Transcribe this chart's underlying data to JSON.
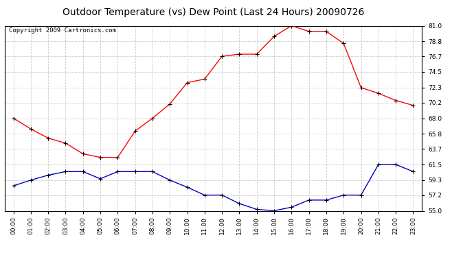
{
  "title": "Outdoor Temperature (vs) Dew Point (Last 24 Hours) 20090726",
  "copyright": "Copyright 2009 Cartronics.com",
  "hours": [
    "00:00",
    "01:00",
    "02:00",
    "03:00",
    "04:00",
    "05:00",
    "06:00",
    "07:00",
    "08:00",
    "09:00",
    "10:00",
    "11:00",
    "12:00",
    "13:00",
    "14:00",
    "15:00",
    "16:00",
    "17:00",
    "18:00",
    "19:00",
    "20:00",
    "21:00",
    "22:00",
    "23:00"
  ],
  "temp": [
    68.0,
    66.5,
    65.2,
    64.5,
    63.0,
    62.5,
    62.5,
    66.2,
    68.0,
    70.0,
    73.0,
    73.5,
    76.7,
    77.0,
    77.0,
    79.5,
    81.0,
    80.2,
    80.2,
    78.5,
    72.3,
    71.5,
    70.5,
    69.8
  ],
  "dewpoint": [
    58.5,
    59.3,
    60.0,
    60.5,
    60.5,
    59.5,
    60.5,
    60.5,
    60.5,
    59.3,
    58.3,
    57.2,
    57.2,
    56.0,
    55.2,
    55.0,
    55.5,
    56.5,
    56.5,
    57.2,
    57.2,
    61.5,
    61.5,
    60.5
  ],
  "temp_color": "#ff0000",
  "dew_color": "#0000cc",
  "marker": "+",
  "marker_color": "#000000",
  "marker_size": 4,
  "grid_color": "#cccccc",
  "background_color": "#ffffff",
  "plot_bg_color": "#ffffff",
  "ylim": [
    55.0,
    81.0
  ],
  "yticks": [
    55.0,
    57.2,
    59.3,
    61.5,
    63.7,
    65.8,
    68.0,
    70.2,
    72.3,
    74.5,
    76.7,
    78.8,
    81.0
  ],
  "title_fontsize": 10,
  "copyright_fontsize": 6.5,
  "tick_fontsize": 6.5
}
